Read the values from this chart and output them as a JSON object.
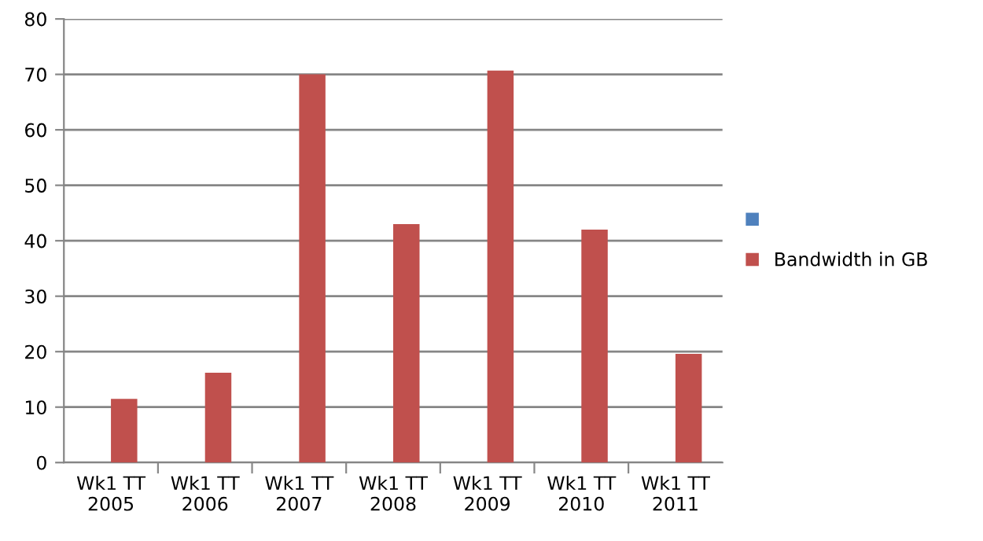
{
  "chart_data": {
    "type": "bar",
    "categories": [
      "Wk1 TT\n2005",
      "Wk1 TT\n2006",
      "Wk1 TT\n2007",
      "Wk1 TT\n2008",
      "Wk1 TT\n2009",
      "Wk1 TT\n2010",
      "Wk1 TT\n2011"
    ],
    "series": [
      {
        "color": "#4f81bd",
        "values": [
          null,
          null,
          null,
          null,
          null,
          null,
          null
        ]
      },
      {
        "name": "Bandwidth in GB",
        "color": "#c0504d",
        "values": [
          11.5,
          16.2,
          70,
          43,
          70.7,
          42,
          19.6
        ]
      }
    ],
    "ylim": [
      0,
      80
    ],
    "yticks": [
      0,
      10,
      20,
      30,
      40,
      50,
      60,
      70,
      80
    ],
    "grid": "y",
    "legend": "right"
  }
}
